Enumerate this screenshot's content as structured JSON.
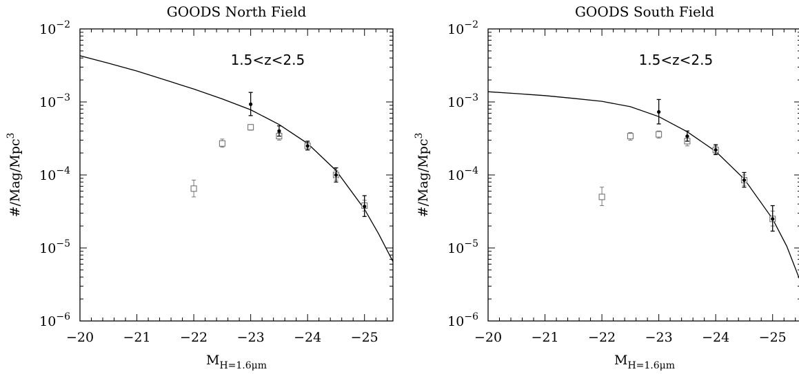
{
  "chart_data": [
    {
      "type": "scatter",
      "title": "GOODS North Field",
      "xlabel": "M",
      "xlabel_sub": "H=1.6μm",
      "ylabel": "#/Mag/Mpc",
      "ylabel_sup": "3",
      "annotation": "1.5<z<2.5",
      "xlim": [
        -20,
        -25.5
      ],
      "ylim": [
        1e-06,
        0.01
      ],
      "yscale": "log",
      "x_ticks": [
        -20,
        -21,
        -22,
        -23,
        -24,
        -25
      ],
      "x_tick_labels": [
        "−20",
        "−21",
        "−22",
        "−23",
        "−24",
        "−25"
      ],
      "y_ticks": [
        {
          "base": "10",
          "exp": "−2",
          "value": 0.01
        },
        {
          "base": "10",
          "exp": "−3",
          "value": 0.001
        },
        {
          "base": "10",
          "exp": "−4",
          "value": 0.0001
        },
        {
          "base": "10",
          "exp": "−5",
          "value": 1e-05
        },
        {
          "base": "10",
          "exp": "−6",
          "value": 1e-06
        }
      ],
      "series": [
        {
          "marker": "open-square",
          "points": [
            {
              "x": -22.0,
              "y": 6.5e-05,
              "lo": 5e-05,
              "hi": 8.5e-05
            },
            {
              "x": -22.5,
              "y": 0.00027,
              "lo": 0.00024,
              "hi": 0.00031
            },
            {
              "x": -23.0,
              "y": 0.00045,
              "lo": 0.00041,
              "hi": 0.00049
            },
            {
              "x": -23.5,
              "y": 0.00034,
              "lo": 0.0003,
              "hi": 0.00038
            },
            {
              "x": -24.0,
              "y": 0.00025,
              "lo": 0.00022,
              "hi": 0.00028
            },
            {
              "x": -24.5,
              "y": 0.0001,
              "lo": 8.5e-05,
              "hi": 0.000115
            },
            {
              "x": -25.0,
              "y": 3.8e-05,
              "lo": 3.2e-05,
              "hi": 4.5e-05
            }
          ]
        },
        {
          "marker": "filled-circle",
          "points": [
            {
              "x": -23.0,
              "y": 0.00093,
              "lo": 0.00065,
              "hi": 0.00135
            },
            {
              "x": -23.5,
              "y": 0.0004,
              "lo": 0.00034,
              "hi": 0.00047
            },
            {
              "x": -24.0,
              "y": 0.00025,
              "lo": 0.00022,
              "hi": 0.00029
            },
            {
              "x": -24.5,
              "y": 0.0001,
              "lo": 8e-05,
              "hi": 0.000125
            },
            {
              "x": -25.0,
              "y": 3.7e-05,
              "lo": 2.7e-05,
              "hi": 5.2e-05
            }
          ]
        },
        {
          "marker": "line",
          "points": [
            {
              "x": -20.0,
              "y": 0.0043
            },
            {
              "x": -20.5,
              "y": 0.0034
            },
            {
              "x": -21.0,
              "y": 0.00265
            },
            {
              "x": -21.5,
              "y": 0.002
            },
            {
              "x": -22.0,
              "y": 0.0015
            },
            {
              "x": -22.5,
              "y": 0.0011
            },
            {
              "x": -23.0,
              "y": 0.00078
            },
            {
              "x": -23.5,
              "y": 0.00049
            },
            {
              "x": -24.0,
              "y": 0.00027
            },
            {
              "x": -24.5,
              "y": 0.000115
            },
            {
              "x": -25.0,
              "y": 3.4e-05
            },
            {
              "x": -25.25,
              "y": 1.55e-05
            },
            {
              "x": -25.5,
              "y": 6.5e-06
            }
          ]
        }
      ]
    },
    {
      "type": "scatter",
      "title": "GOODS South Field",
      "xlabel": "M",
      "xlabel_sub": "H=1.6μm",
      "ylabel": "#/Mag/Mpc",
      "ylabel_sup": "3",
      "annotation": "1.5<z<2.5",
      "xlim": [
        -20,
        -25.5
      ],
      "ylim": [
        1e-06,
        0.01
      ],
      "yscale": "log",
      "x_ticks": [
        -20,
        -21,
        -22,
        -23,
        -24,
        -25
      ],
      "x_tick_labels": [
        "−20",
        "−21",
        "−22",
        "−23",
        "−24",
        "−25"
      ],
      "y_ticks": [
        {
          "base": "10",
          "exp": "−2",
          "value": 0.01
        },
        {
          "base": "10",
          "exp": "−3",
          "value": 0.001
        },
        {
          "base": "10",
          "exp": "−4",
          "value": 0.0001
        },
        {
          "base": "10",
          "exp": "−5",
          "value": 1e-05
        },
        {
          "base": "10",
          "exp": "−6",
          "value": 1e-06
        }
      ],
      "series": [
        {
          "marker": "open-square",
          "points": [
            {
              "x": -22.0,
              "y": 5e-05,
              "lo": 3.8e-05,
              "hi": 6.8e-05
            },
            {
              "x": -22.5,
              "y": 0.00034,
              "lo": 0.0003,
              "hi": 0.00038
            },
            {
              "x": -23.0,
              "y": 0.00036,
              "lo": 0.00032,
              "hi": 0.0004
            },
            {
              "x": -23.5,
              "y": 0.00029,
              "lo": 0.00025,
              "hi": 0.00033
            },
            {
              "x": -24.0,
              "y": 0.00022,
              "lo": 0.000195,
              "hi": 0.00025
            },
            {
              "x": -24.5,
              "y": 8.5e-05,
              "lo": 7.2e-05,
              "hi": 0.0001
            },
            {
              "x": -25.0,
              "y": 2.5e-05,
              "lo": 2e-05,
              "hi": 3.2e-05
            }
          ]
        },
        {
          "marker": "filled-circle",
          "points": [
            {
              "x": -23.0,
              "y": 0.00073,
              "lo": 0.0005,
              "hi": 0.00108
            },
            {
              "x": -23.5,
              "y": 0.00034,
              "lo": 0.00029,
              "hi": 0.0004
            },
            {
              "x": -24.0,
              "y": 0.00022,
              "lo": 0.00019,
              "hi": 0.00026
            },
            {
              "x": -24.5,
              "y": 8.5e-05,
              "lo": 6.8e-05,
              "hi": 0.000108
            },
            {
              "x": -25.0,
              "y": 2.5e-05,
              "lo": 1.7e-05,
              "hi": 3.8e-05
            }
          ]
        },
        {
          "marker": "line",
          "points": [
            {
              "x": -20.0,
              "y": 0.00138
            },
            {
              "x": -20.5,
              "y": 0.0013
            },
            {
              "x": -21.0,
              "y": 0.00122
            },
            {
              "x": -21.5,
              "y": 0.00112
            },
            {
              "x": -22.0,
              "y": 0.00102
            },
            {
              "x": -22.5,
              "y": 0.00086
            },
            {
              "x": -23.0,
              "y": 0.00063
            },
            {
              "x": -23.5,
              "y": 0.00039
            },
            {
              "x": -24.0,
              "y": 0.00021
            },
            {
              "x": -24.5,
              "y": 8.8e-05
            },
            {
              "x": -25.0,
              "y": 2.5e-05
            },
            {
              "x": -25.25,
              "y": 1.05e-05
            },
            {
              "x": -25.5,
              "y": 3.3e-06
            }
          ]
        }
      ]
    }
  ]
}
